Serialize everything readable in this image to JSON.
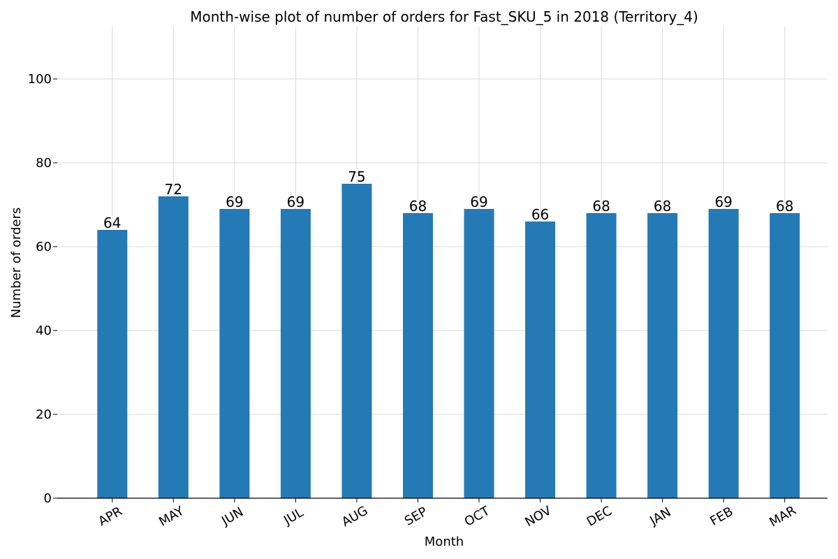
{
  "colors": {
    "bar": "#1f77b4",
    "grid": "#d9d9d9",
    "axis": "#000000",
    "background": "#ffffff"
  },
  "chart_data": {
    "type": "bar",
    "title": "Month-wise plot of number of orders for Fast_SKU_5 in 2018 (Territory_4)",
    "xlabel": "Month",
    "ylabel": "Number of orders",
    "categories": [
      "APR",
      "MAY",
      "JUN",
      "JUL",
      "AUG",
      "SEP",
      "OCT",
      "NOV",
      "DEC",
      "JAN",
      "FEB",
      "MAR"
    ],
    "values": [
      64,
      72,
      69,
      69,
      75,
      68,
      69,
      66,
      68,
      68,
      69,
      68
    ],
    "value_labels": [
      "64",
      "72",
      "69",
      "69",
      "75",
      "68",
      "69",
      "66",
      "68",
      "68",
      "69",
      "68"
    ],
    "ylim": [
      0,
      112.5
    ],
    "yticks": [
      0,
      20,
      40,
      60,
      80,
      100
    ],
    "ytick_labels": [
      "0",
      "20",
      "40",
      "60",
      "80",
      "100"
    ],
    "grid": true
  }
}
